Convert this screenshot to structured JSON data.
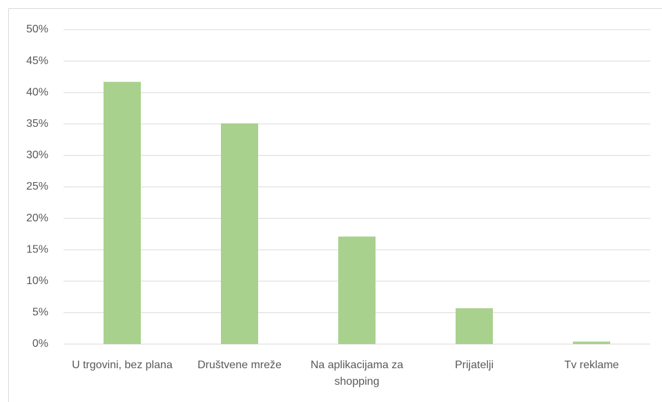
{
  "chart_data": {
    "type": "bar",
    "categories": [
      "U trgovini, bez plana",
      "Društvene mreže",
      "Na aplikacijama za shopping",
      "Prijatelji",
      "Tv reklame"
    ],
    "values": [
      41.7,
      35.1,
      17.1,
      5.7,
      0.4
    ],
    "color": "#a9d18e",
    "ylim": [
      0,
      50
    ],
    "yticks": [
      {
        "value": 0,
        "label": "0%"
      },
      {
        "value": 5,
        "label": "5%"
      },
      {
        "value": 10,
        "label": "10%"
      },
      {
        "value": 15,
        "label": "15%"
      },
      {
        "value": 20,
        "label": "20%"
      },
      {
        "value": 25,
        "label": "25%"
      },
      {
        "value": 30,
        "label": "30%"
      },
      {
        "value": 35,
        "label": "35%"
      },
      {
        "value": 40,
        "label": "40%"
      },
      {
        "value": 45,
        "label": "45%"
      },
      {
        "value": 50,
        "label": "50%"
      }
    ],
    "grid": true
  }
}
